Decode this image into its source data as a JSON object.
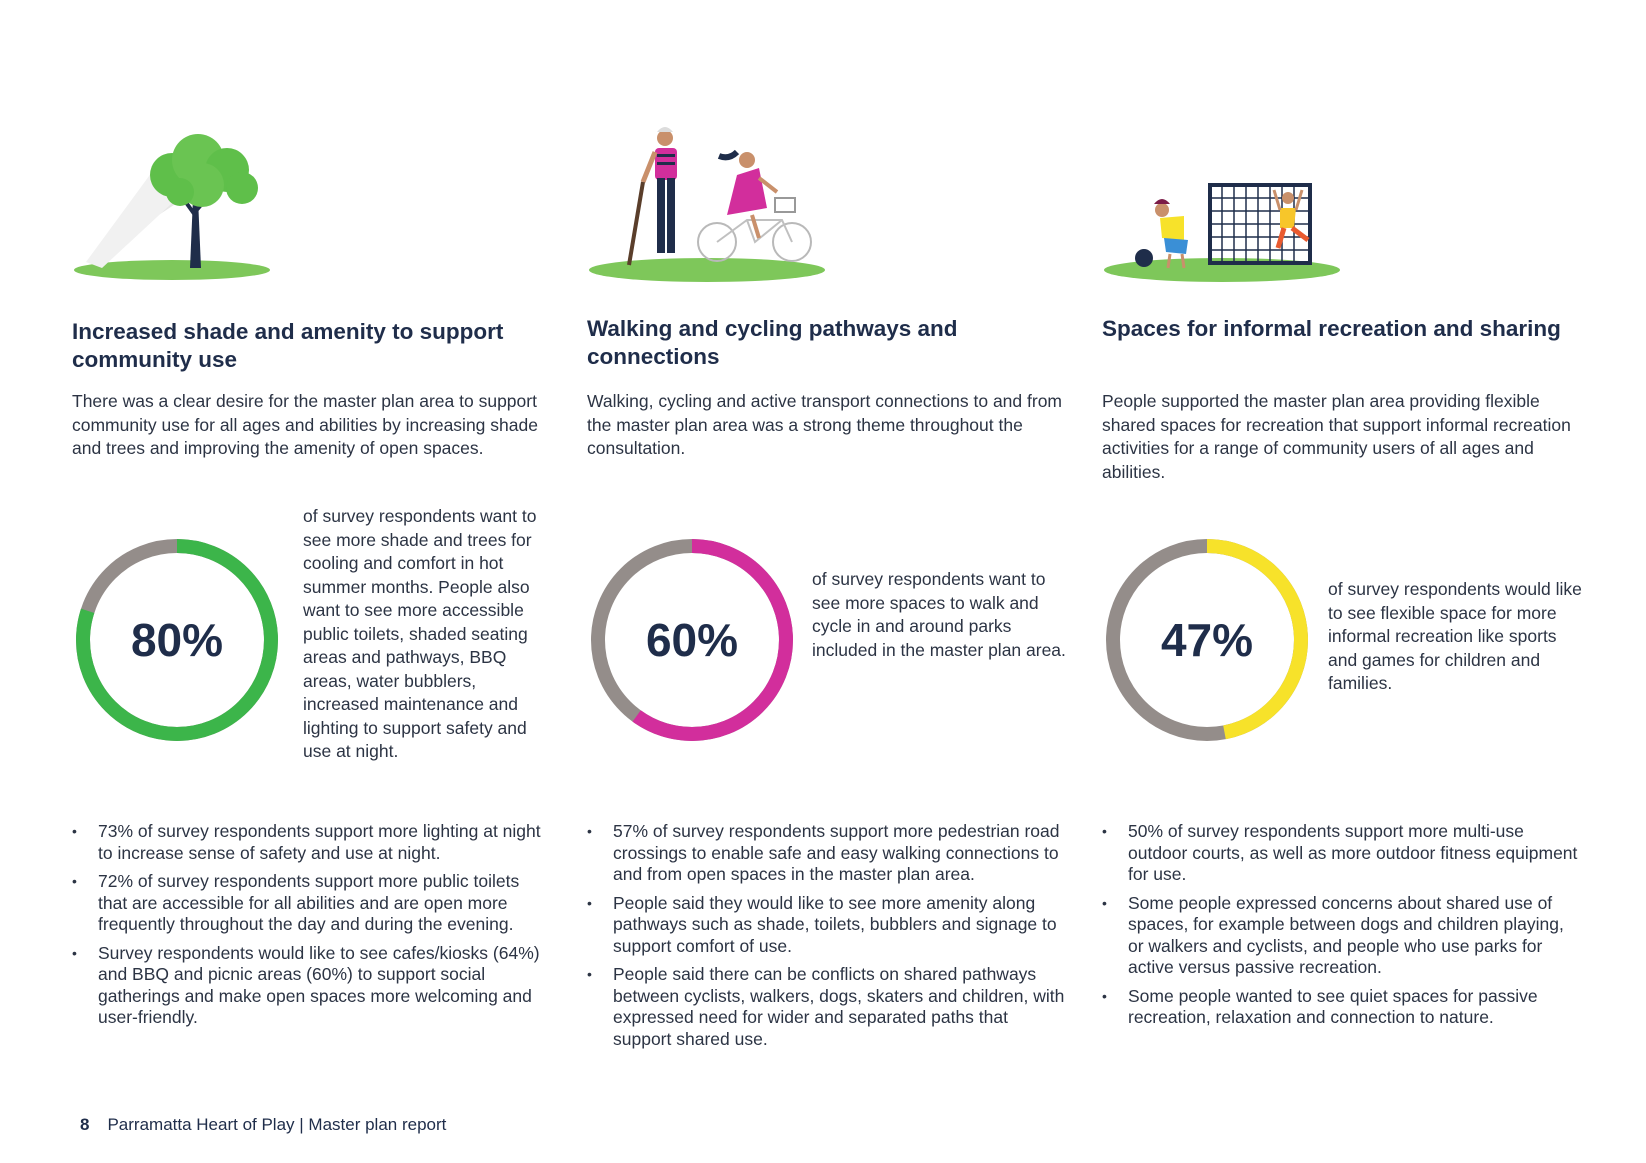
{
  "columns": [
    {
      "heading": "Increased shade and amenity to support community use",
      "intro": "There was a clear desire for the master plan area to support community use for all ages and abilities by increasing shade and trees and improving the amenity of open spaces.",
      "stat": {
        "percent_label": "80%",
        "value": 80,
        "color": "#3cb54a",
        "remainder_color": "#948d8a"
      },
      "stat_text": "of survey respondents want to see more shade and trees for cooling and comfort in hot summer months. People also want to see more accessible public toilets, shaded seating areas and pathways, BBQ areas, water bubblers, increased maintenance and lighting to support safety and use at night.",
      "bullets": [
        "73% of survey respondents support more lighting at night to increase sense of safety and use at night.",
        "72% of survey respondents support more public toilets that are accessible for all abilities and are open more frequently throughout the day and during the evening.",
        "Survey respondents would like to see cafes/kiosks (64%) and BBQ and picnic areas (60%) to support social gatherings and make open spaces more welcoming and user-friendly."
      ],
      "icon": "tree-shade-icon"
    },
    {
      "heading": "Walking and cycling pathways and connections",
      "intro": "Walking, cycling and active transport connections to and from the master plan area was a strong theme throughout the consultation.",
      "stat": {
        "percent_label": "60%",
        "value": 60,
        "color": "#d22e9c",
        "remainder_color": "#948d8a"
      },
      "stat_text": "of survey respondents want to see more spaces to walk and cycle in and around parks included in the master plan area.",
      "bullets": [
        "57% of survey respondents support more pedestrian road crossings to enable safe and easy walking connections to and from open spaces in the master plan area.",
        "People said they would like to see more amenity along pathways such as shade, toilets, bubblers and signage to support comfort of use.",
        "People said there can be conflicts on shared pathways between cyclists, walkers, dogs, skaters and children, with expressed need for wider and separated paths that support shared use."
      ],
      "icon": "walker-cyclist-icon"
    },
    {
      "heading": "Spaces for informal recreation and sharing",
      "intro": "People supported the master plan area providing flexible shared spaces for recreation that support informal recreation activities for a range of community users of all ages and abilities.",
      "stat": {
        "percent_label": "47%",
        "value": 47,
        "color": "#f7e22a",
        "remainder_color": "#948d8a"
      },
      "stat_text": "of survey respondents would like to see flexible space for more informal recreation like sports and games for children and families.",
      "bullets": [
        "50% of survey respondents support more multi-use outdoor courts, as well as more outdoor fitness equipment for use.",
        "Some people expressed concerns about shared use of spaces, for example between dogs and children playing, or walkers and cyclists, and people who use parks for active versus passive recreation.",
        "Some people wanted to see quiet spaces for passive recreation, relaxation and connection to nature."
      ],
      "icon": "children-playing-icon"
    }
  ],
  "footer": {
    "page_number": "8",
    "title": "Parramatta Heart of Play | Master plan report"
  }
}
